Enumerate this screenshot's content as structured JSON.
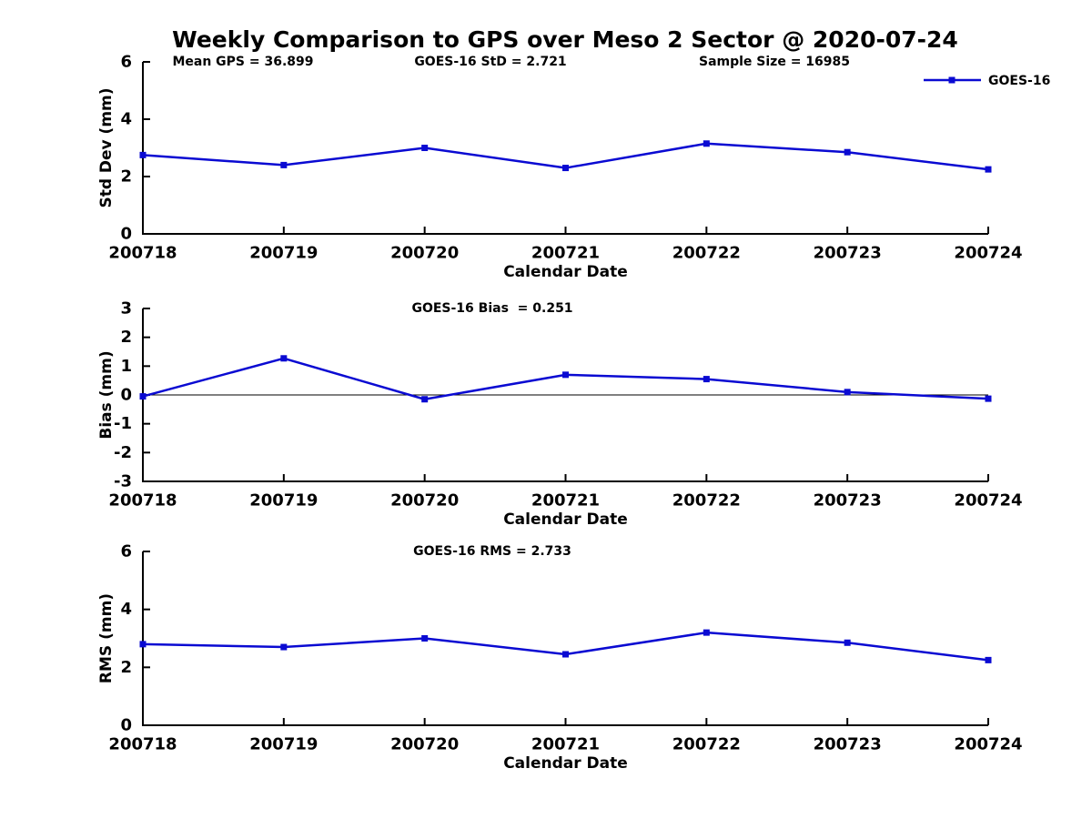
{
  "figure": {
    "title": "Weekly Comparison to GPS over Meso 2 Sector @ 2020-07-24",
    "background": "#ffffff",
    "line_color": "#0a0ad2",
    "axis_color": "#000000",
    "text_color": "#000000"
  },
  "legend": {
    "label": "GOES-16",
    "position": "top-right",
    "marker": "square"
  },
  "chart_data": [
    {
      "type": "line",
      "name": "std-dev-panel",
      "categories": [
        "200718",
        "200719",
        "200720",
        "200721",
        "200722",
        "200723",
        "200724"
      ],
      "series": [
        {
          "name": "GOES-16",
          "values": [
            2.75,
            2.4,
            3.0,
            2.3,
            3.15,
            2.85,
            2.25
          ]
        }
      ],
      "xlabel": "Calendar Date",
      "ylabel": "Std Dev (mm)",
      "ylim": [
        0,
        6
      ],
      "yticks": [
        0,
        2,
        4,
        6
      ],
      "grid": false,
      "zero_line": false,
      "annotations": [
        "Mean GPS = 36.899",
        "GOES-16 StD = 2.721",
        "Sample Size = 16985"
      ]
    },
    {
      "type": "line",
      "name": "bias-panel",
      "categories": [
        "200718",
        "200719",
        "200720",
        "200721",
        "200722",
        "200723",
        "200724"
      ],
      "series": [
        {
          "name": "GOES-16",
          "values": [
            -0.05,
            1.27,
            -0.15,
            0.7,
            0.55,
            0.1,
            -0.13
          ]
        }
      ],
      "xlabel": "Calendar Date",
      "ylabel": "Bias (mm)",
      "ylim": [
        -3,
        3
      ],
      "yticks": [
        -3,
        -2,
        -1,
        0,
        1,
        2,
        3
      ],
      "grid": false,
      "zero_line": true,
      "annotations": [
        "GOES-16 Bias  = 0.251"
      ]
    },
    {
      "type": "line",
      "name": "rms-panel",
      "categories": [
        "200718",
        "200719",
        "200720",
        "200721",
        "200722",
        "200723",
        "200724"
      ],
      "series": [
        {
          "name": "GOES-16",
          "values": [
            2.8,
            2.7,
            3.0,
            2.45,
            3.2,
            2.85,
            2.25
          ]
        }
      ],
      "xlabel": "Calendar Date",
      "ylabel": "RMS (mm)",
      "ylim": [
        0,
        6
      ],
      "yticks": [
        0,
        2,
        4,
        6
      ],
      "grid": false,
      "zero_line": false,
      "annotations": [
        "GOES-16 RMS = 2.733"
      ]
    }
  ]
}
